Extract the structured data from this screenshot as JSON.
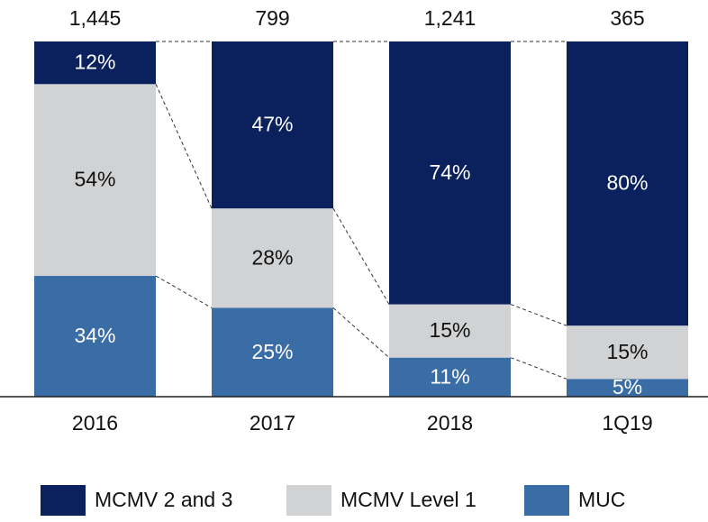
{
  "chart_data": {
    "type": "stacked-bar-100",
    "categories": [
      "2016",
      "2017",
      "2018",
      "1Q19"
    ],
    "totals": {
      "values": [
        1445,
        799,
        1241,
        365
      ],
      "value_labels": [
        "1,445",
        "799",
        "1,241",
        "365"
      ]
    },
    "series": [
      {
        "name": "MCMV 2 and 3",
        "color": "#0b215e",
        "values": [
          12,
          47,
          74,
          80
        ],
        "value_labels": [
          "12%",
          "47%",
          "74%",
          "80%"
        ]
      },
      {
        "name": "MCMV Level 1",
        "color": "#d1d2d4",
        "values": [
          54,
          28,
          15,
          15
        ],
        "value_labels": [
          "54%",
          "28%",
          "15%",
          "15%"
        ]
      },
      {
        "name": "MUC",
        "color": "#3a6ca5",
        "values": [
          34,
          25,
          11,
          5
        ],
        "value_labels": [
          "34%",
          "25%",
          "11%",
          "5%"
        ]
      }
    ],
    "legend": "bottom"
  }
}
